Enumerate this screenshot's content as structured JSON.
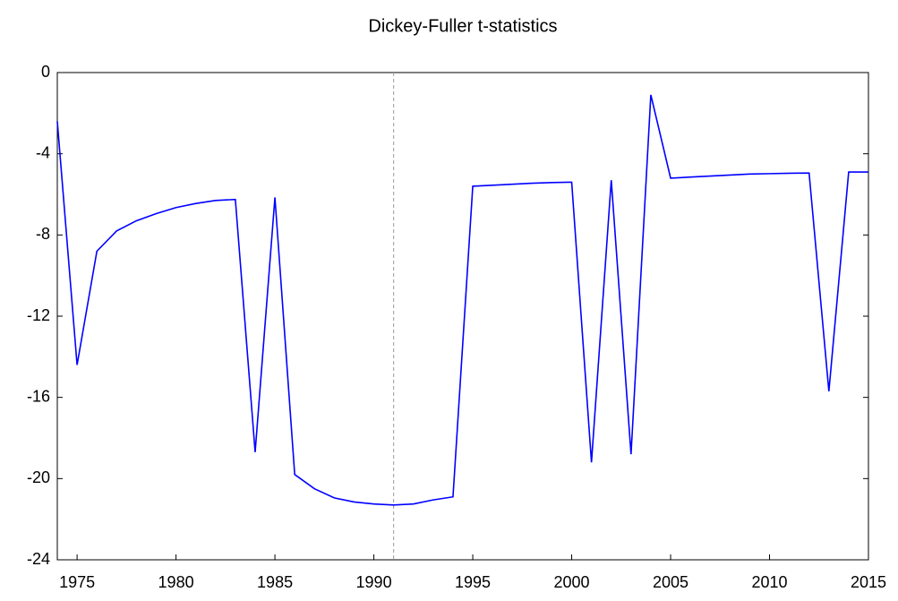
{
  "chart_data": {
    "type": "line",
    "title": "Dickey-Fuller t-statistics",
    "x": [
      1974,
      1975,
      1976,
      1977,
      1978,
      1979,
      1980,
      1981,
      1982,
      1983,
      1984,
      1985,
      1986,
      1987,
      1988,
      1989,
      1990,
      1991,
      1992,
      1993,
      1994,
      1995,
      1996,
      1997,
      1998,
      1999,
      2000,
      2001,
      2002,
      2003,
      2004,
      2005,
      2006,
      2007,
      2008,
      2009,
      2010,
      2011,
      2012,
      2013,
      2014,
      2015
    ],
    "series": [
      {
        "color": "#0000ff",
        "values": [
          -2.4,
          -14.4,
          -8.8,
          -7.8,
          -7.3,
          -6.95,
          -6.65,
          -6.45,
          -6.3,
          -6.25,
          -18.7,
          -6.15,
          -19.8,
          -20.5,
          -20.95,
          -21.15,
          -21.25,
          -21.3,
          -21.25,
          -21.05,
          -20.9,
          -5.6,
          -5.55,
          -5.5,
          -5.45,
          -5.42,
          -5.4,
          -19.2,
          -5.3,
          -18.8,
          -1.1,
          -5.2,
          -5.15,
          -5.1,
          -5.05,
          -5.0,
          -4.98,
          -4.96,
          -4.95,
          -15.7,
          -4.9,
          -4.9
        ]
      }
    ],
    "xlim": [
      1974,
      2015
    ],
    "xticks": [
      1975,
      1980,
      1985,
      1990,
      1995,
      2000,
      2005,
      2010,
      2015
    ],
    "ylim": [
      -24,
      0
    ],
    "yticks": [
      0,
      -4,
      -8,
      -12,
      -16,
      -20,
      -24
    ],
    "vline": 1991
  }
}
